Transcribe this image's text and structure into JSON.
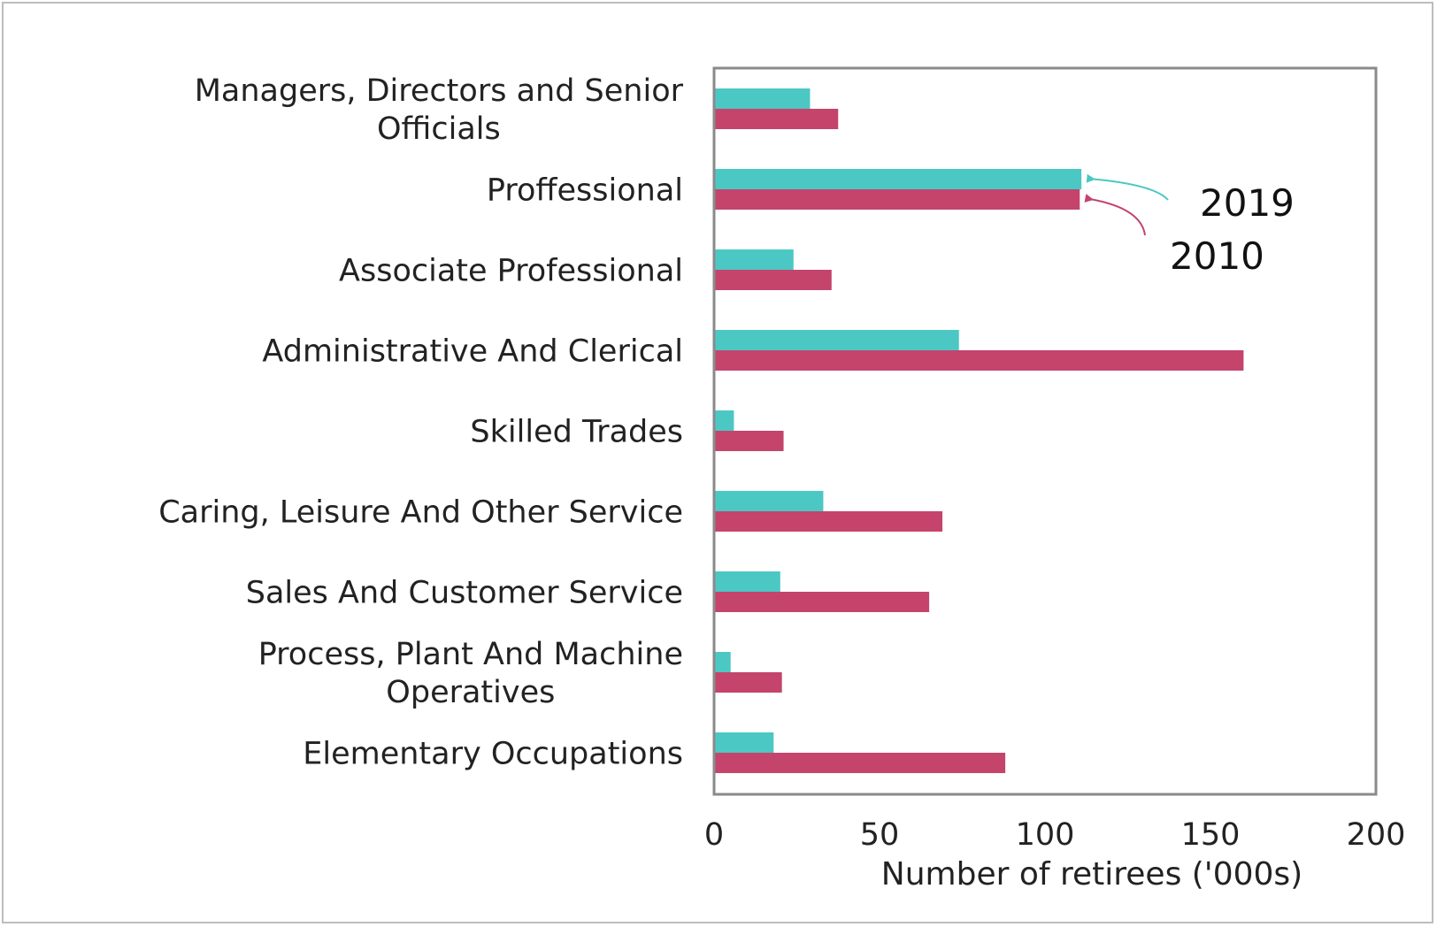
{
  "chart_data": {
    "type": "bar",
    "orientation": "horizontal",
    "categories": [
      [
        "Managers, Directors and Senior",
        "Officials"
      ],
      [
        "Proffessional"
      ],
      [
        "Associate Professional"
      ],
      [
        "Administrative And Clerical"
      ],
      [
        "Skilled Trades"
      ],
      [
        "Caring, Leisure And Other Service"
      ],
      [
        "Sales And Customer Service"
      ],
      [
        "Process, Plant And Machine",
        "Operatives"
      ],
      [
        "Elementary Occupations"
      ]
    ],
    "series": [
      {
        "name": "2019",
        "color": "#4bc8c4",
        "values": [
          29,
          111,
          24,
          74,
          6,
          33,
          20,
          5,
          18
        ]
      },
      {
        "name": "2010",
        "color": "#c4446c",
        "values": [
          37.5,
          110.5,
          35.5,
          160,
          21,
          69,
          65,
          20.5,
          88
        ]
      }
    ],
    "xlabel": "Number of retirees ('000s)",
    "ylabel": "",
    "xlim": [
      0,
      200
    ],
    "xticks": [
      0,
      50,
      100,
      150,
      200
    ],
    "grid": false,
    "annotations": [
      {
        "text": "2019",
        "series": "2019",
        "category_index": 1
      },
      {
        "text": "2010",
        "series": "2010",
        "category_index": 1
      }
    ]
  }
}
